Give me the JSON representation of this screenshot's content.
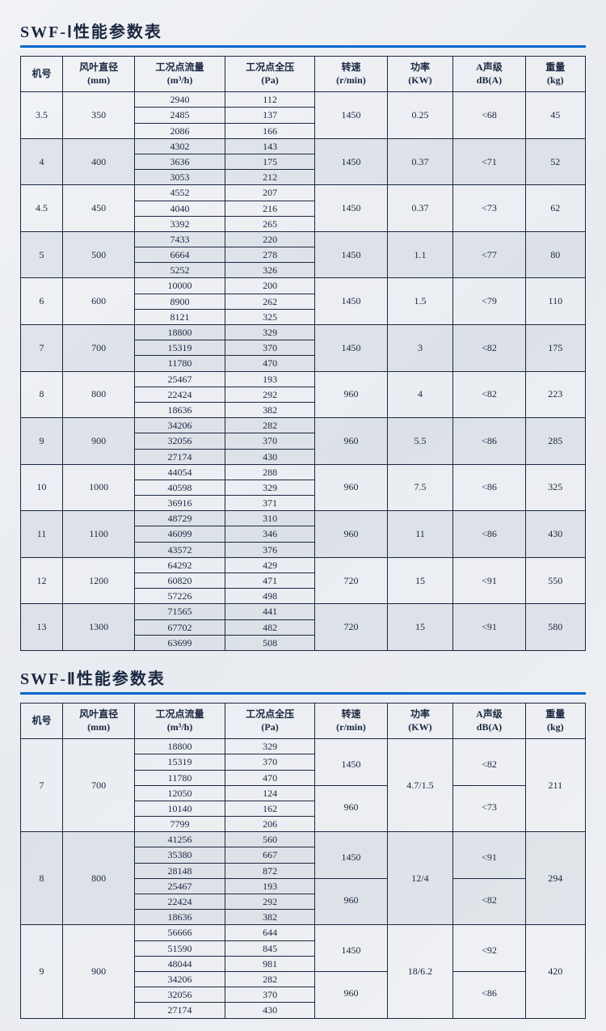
{
  "titles": {
    "table1": "SWF-Ⅰ性能参数表",
    "table2": "SWF-Ⅱ性能参数表"
  },
  "headers": {
    "model": "机号",
    "diameter": "风叶直径\n(mm)",
    "flow": "工况点流量\n(m³/h)",
    "pressure": "工况点全压\n(Pa)",
    "speed": "转速\n(r/min)",
    "power": "功率\n(KW)",
    "sound": "A声级\ndB(A)",
    "weight": "重量\n(kg)"
  },
  "table1": [
    {
      "model": "3.5",
      "dia": "350",
      "flow": [
        "2940",
        "2485",
        "2086"
      ],
      "press": [
        "112",
        "137",
        "166"
      ],
      "speed": "1450",
      "power": "0.25",
      "sound": "<68",
      "weight": "45",
      "shade": false
    },
    {
      "model": "4",
      "dia": "400",
      "flow": [
        "4302",
        "3636",
        "3053"
      ],
      "press": [
        "143",
        "175",
        "212"
      ],
      "speed": "1450",
      "power": "0.37",
      "sound": "<71",
      "weight": "52",
      "shade": true
    },
    {
      "model": "4.5",
      "dia": "450",
      "flow": [
        "4552",
        "4040",
        "3392"
      ],
      "press": [
        "207",
        "216",
        "265"
      ],
      "speed": "1450",
      "power": "0.37",
      "sound": "<73",
      "weight": "62",
      "shade": false
    },
    {
      "model": "5",
      "dia": "500",
      "flow": [
        "7433",
        "6664",
        "5252"
      ],
      "press": [
        "220",
        "278",
        "326"
      ],
      "speed": "1450",
      "power": "1.1",
      "sound": "<77",
      "weight": "80",
      "shade": true
    },
    {
      "model": "6",
      "dia": "600",
      "flow": [
        "10000",
        "8900",
        "8121"
      ],
      "press": [
        "200",
        "262",
        "325"
      ],
      "speed": "1450",
      "power": "1.5",
      "sound": "<79",
      "weight": "110",
      "shade": false
    },
    {
      "model": "7",
      "dia": "700",
      "flow": [
        "18800",
        "15319",
        "11780"
      ],
      "press": [
        "329",
        "370",
        "470"
      ],
      "speed": "1450",
      "power": "3",
      "sound": "<82",
      "weight": "175",
      "shade": true
    },
    {
      "model": "8",
      "dia": "800",
      "flow": [
        "25467",
        "22424",
        "18636"
      ],
      "press": [
        "193",
        "292",
        "382"
      ],
      "speed": "960",
      "power": "4",
      "sound": "<82",
      "weight": "223",
      "shade": false
    },
    {
      "model": "9",
      "dia": "900",
      "flow": [
        "34206",
        "32056",
        "27174"
      ],
      "press": [
        "282",
        "370",
        "430"
      ],
      "speed": "960",
      "power": "5.5",
      "sound": "<86",
      "weight": "285",
      "shade": true
    },
    {
      "model": "10",
      "dia": "1000",
      "flow": [
        "44054",
        "40598",
        "36916"
      ],
      "press": [
        "288",
        "329",
        "371"
      ],
      "speed": "960",
      "power": "7.5",
      "sound": "<86",
      "weight": "325",
      "shade": false
    },
    {
      "model": "11",
      "dia": "1100",
      "flow": [
        "48729",
        "46099",
        "43572"
      ],
      "press": [
        "310",
        "346",
        "376"
      ],
      "speed": "960",
      "power": "11",
      "sound": "<86",
      "weight": "430",
      "shade": true
    },
    {
      "model": "12",
      "dia": "1200",
      "flow": [
        "64292",
        "60820",
        "57226"
      ],
      "press": [
        "429",
        "471",
        "498"
      ],
      "speed": "720",
      "power": "15",
      "sound": "<91",
      "weight": "550",
      "shade": false
    },
    {
      "model": "13",
      "dia": "1300",
      "flow": [
        "71565",
        "67702",
        "63699"
      ],
      "press": [
        "441",
        "482",
        "508"
      ],
      "speed": "720",
      "power": "15",
      "sound": "<91",
      "weight": "580",
      "shade": true
    }
  ],
  "table2": [
    {
      "model": "7",
      "dia": "700",
      "flow": [
        "18800",
        "15319",
        "11780",
        "12050",
        "10140",
        "7799"
      ],
      "press": [
        "329",
        "370",
        "470",
        "124",
        "162",
        "206"
      ],
      "speed": [
        "1450",
        "960"
      ],
      "power": "4.7/1.5",
      "sound": [
        "<82",
        "<73"
      ],
      "weight": "211",
      "shade": false
    },
    {
      "model": "8",
      "dia": "800",
      "flow": [
        "41256",
        "35380",
        "28148",
        "25467",
        "22424",
        "18636"
      ],
      "press": [
        "560",
        "667",
        "872",
        "193",
        "292",
        "382"
      ],
      "speed": [
        "1450",
        "960"
      ],
      "power": "12/4",
      "sound": [
        "<91",
        "<82"
      ],
      "weight": "294",
      "shade": true
    },
    {
      "model": "9",
      "dia": "900",
      "flow": [
        "56666",
        "51590",
        "48044",
        "34206",
        "32056",
        "27174"
      ],
      "press": [
        "644",
        "845",
        "981",
        "282",
        "370",
        "430"
      ],
      "speed": [
        "1450",
        "960"
      ],
      "power": "18/6.2",
      "sound": [
        "<92",
        "<86"
      ],
      "weight": "420",
      "shade": false
    }
  ]
}
